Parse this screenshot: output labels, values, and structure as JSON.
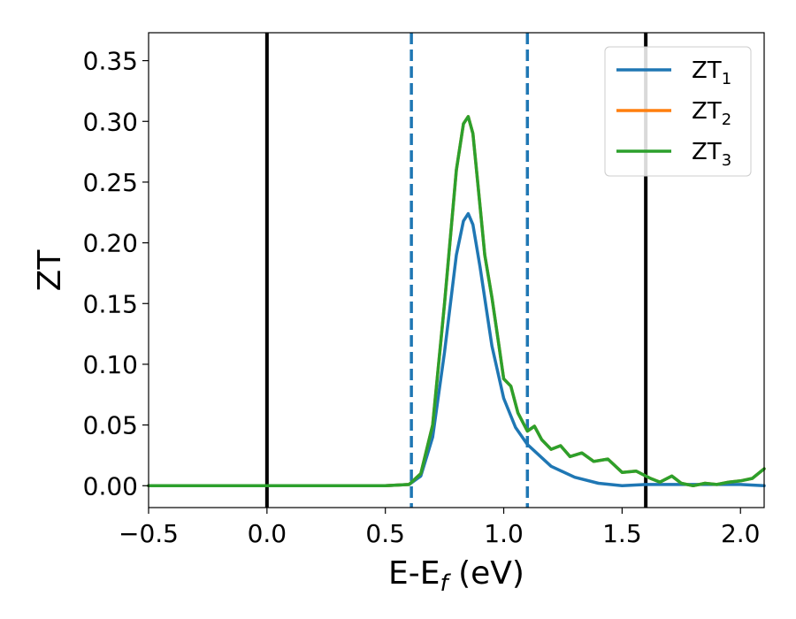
{
  "chart_data": {
    "type": "line",
    "title": "",
    "xlabel": {
      "main": "E-E",
      "sub": "f",
      "suffix": " (eV)"
    },
    "ylabel": "ZT",
    "xlim": [
      -0.5,
      2.1
    ],
    "ylim": [
      -0.018,
      0.373
    ],
    "grid": false,
    "legend_position": "top-right",
    "x_ticks": [
      "−0.5",
      "0.0",
      "0.5",
      "1.0",
      "1.5",
      "2.0"
    ],
    "x_tick_values": [
      -0.5,
      0.0,
      0.5,
      1.0,
      1.5,
      2.0
    ],
    "y_ticks": [
      "0.00",
      "0.05",
      "0.10",
      "0.15",
      "0.20",
      "0.25",
      "0.30",
      "0.35"
    ],
    "y_tick_values": [
      0.0,
      0.05,
      0.1,
      0.15,
      0.2,
      0.25,
      0.3,
      0.35
    ],
    "vlines": [
      {
        "x": 0.0,
        "style": "solid",
        "color": "#000000"
      },
      {
        "x": 1.6,
        "style": "solid",
        "color": "#000000"
      },
      {
        "x": 0.61,
        "style": "dashed",
        "color": "#1f77b4"
      },
      {
        "x": 1.1,
        "style": "dashed",
        "color": "#1f77b4"
      }
    ],
    "series": [
      {
        "name": "ZT",
        "subscript": "1",
        "color": "#1f77b4",
        "x": [
          -0.5,
          0.5,
          0.6,
          0.65,
          0.7,
          0.75,
          0.8,
          0.83,
          0.85,
          0.87,
          0.9,
          0.95,
          1.0,
          1.05,
          1.1,
          1.2,
          1.3,
          1.4,
          1.5,
          1.6,
          1.7,
          1.8,
          1.9,
          2.0,
          2.1
        ],
        "y": [
          0.0,
          0.0,
          0.001,
          0.008,
          0.04,
          0.11,
          0.19,
          0.218,
          0.224,
          0.215,
          0.18,
          0.115,
          0.072,
          0.048,
          0.034,
          0.016,
          0.007,
          0.002,
          0.0,
          0.001,
          0.001,
          0.001,
          0.001,
          0.001,
          0.0
        ]
      },
      {
        "name": "ZT",
        "subscript": "2",
        "color": "#ff7f0e",
        "x": [
          -0.5,
          0.5,
          0.6,
          0.65,
          0.7,
          0.75,
          0.8,
          0.83,
          0.85,
          0.87,
          0.9,
          0.92,
          0.95,
          0.98,
          1.0,
          1.03,
          1.06,
          1.1,
          1.13,
          1.16,
          1.2,
          1.24,
          1.28,
          1.33,
          1.38,
          1.44,
          1.5,
          1.56,
          1.62,
          1.66,
          1.71,
          1.75,
          1.8,
          1.85,
          1.9,
          1.95,
          2.0,
          2.05,
          2.1
        ],
        "y": [
          0.0,
          0.0,
          0.001,
          0.01,
          0.05,
          0.15,
          0.26,
          0.298,
          0.304,
          0.29,
          0.23,
          0.19,
          0.155,
          0.115,
          0.088,
          0.082,
          0.06,
          0.045,
          0.049,
          0.038,
          0.03,
          0.033,
          0.024,
          0.027,
          0.02,
          0.022,
          0.011,
          0.012,
          0.006,
          0.003,
          0.008,
          0.002,
          0.0,
          0.002,
          0.001,
          0.003,
          0.004,
          0.006,
          0.014
        ]
      },
      {
        "name": "ZT",
        "subscript": "3",
        "color": "#2ca02c",
        "x": [
          -0.5,
          0.5,
          0.6,
          0.65,
          0.7,
          0.75,
          0.8,
          0.83,
          0.85,
          0.87,
          0.9,
          0.92,
          0.95,
          0.98,
          1.0,
          1.03,
          1.06,
          1.1,
          1.13,
          1.16,
          1.2,
          1.24,
          1.28,
          1.33,
          1.38,
          1.44,
          1.5,
          1.56,
          1.62,
          1.66,
          1.71,
          1.75,
          1.8,
          1.85,
          1.9,
          1.95,
          2.0,
          2.05,
          2.1
        ],
        "y": [
          0.0,
          0.0,
          0.001,
          0.01,
          0.05,
          0.15,
          0.26,
          0.298,
          0.304,
          0.29,
          0.23,
          0.19,
          0.155,
          0.115,
          0.088,
          0.082,
          0.06,
          0.045,
          0.049,
          0.038,
          0.03,
          0.033,
          0.024,
          0.027,
          0.02,
          0.022,
          0.011,
          0.012,
          0.006,
          0.003,
          0.008,
          0.002,
          0.0,
          0.002,
          0.001,
          0.003,
          0.004,
          0.006,
          0.014
        ]
      }
    ]
  }
}
